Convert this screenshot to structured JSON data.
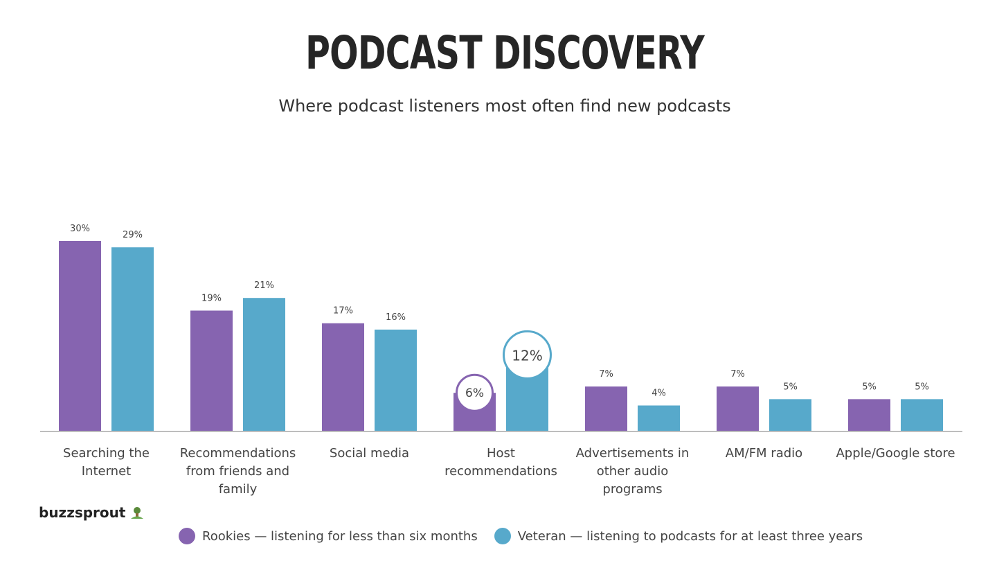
{
  "title": "PODCAST DISCOVERY",
  "subtitle": "Where podcast listeners most often find new podcasts",
  "brand": {
    "name": "buzzsprout"
  },
  "colors": {
    "rookies": "#8664b0",
    "veteran": "#57a9cb",
    "axis": "#bdbdbd"
  },
  "chart_data": {
    "type": "bar",
    "title": "PODCAST DISCOVERY",
    "subtitle": "Where podcast listeners most often find new podcasts",
    "categories": [
      "Searching the Internet",
      "Recommendations from friends and family",
      "Social media",
      "Host recommendations",
      "Advertisements in other audio programs",
      "AM/FM radio",
      "Apple/Google store"
    ],
    "category_lines": [
      [
        "Searching the",
        "Internet"
      ],
      [
        "Recommendations",
        "from friends and",
        "family"
      ],
      [
        "Social media"
      ],
      [
        "Host",
        "recommendations"
      ],
      [
        "Advertisements in",
        "other audio",
        "programs"
      ],
      [
        "AM/FM radio"
      ],
      [
        "Apple/Google store"
      ]
    ],
    "series": [
      {
        "name": "Rookies — listening for less than six months",
        "values": [
          30,
          19,
          17,
          6,
          7,
          7,
          5
        ],
        "labels": [
          "30%",
          "19%",
          "17%",
          "6%",
          "7%",
          "7%",
          "5%"
        ]
      },
      {
        "name": "Veteran — listening to podcasts for at least three years",
        "values": [
          29,
          21,
          16,
          12,
          4,
          5,
          5
        ],
        "labels": [
          "29%",
          "21%",
          "16%",
          "12%",
          "4%",
          "5%",
          "5%"
        ]
      }
    ],
    "highlighted_category": "Host recommendations",
    "ylim": [
      0,
      30
    ],
    "grid": false,
    "legend_position": "bottom",
    "xlabel": "",
    "ylabel": ""
  }
}
